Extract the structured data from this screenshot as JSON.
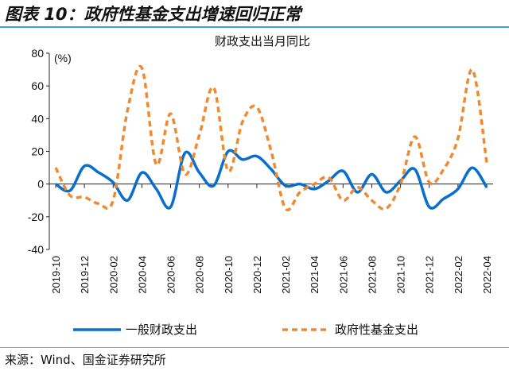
{
  "header": {
    "title": "图表 10：政府性基金支出增速回归正常"
  },
  "source": "来源：Wind、国金证券研究所",
  "chart_data": {
    "type": "line",
    "title": "财政支出当月同比",
    "ylabel": "(%)",
    "xlabel": "",
    "ylim": [
      -40,
      80
    ],
    "yticks": [
      -40,
      -20,
      0,
      20,
      40,
      60,
      80
    ],
    "x": [
      "2019-10",
      "2019-11",
      "2019-12",
      "2020-01",
      "2020-02",
      "2020-03",
      "2020-04",
      "2020-05",
      "2020-06",
      "2020-07",
      "2020-08",
      "2020-09",
      "2020-10",
      "2020-11",
      "2020-12",
      "2021-01",
      "2021-02",
      "2021-03",
      "2021-04",
      "2021-05",
      "2021-06",
      "2021-07",
      "2021-08",
      "2021-09",
      "2021-10",
      "2021-11",
      "2021-12",
      "2022-01",
      "2022-02",
      "2022-03",
      "2022-04"
    ],
    "xtick_labels": [
      "2019-10",
      "2019-12",
      "2020-02",
      "2020-04",
      "2020-06",
      "2020-08",
      "2020-10",
      "2020-12",
      "2021-02",
      "2021-04",
      "2021-06",
      "2021-08",
      "2021-10",
      "2021-12",
      "2022-02",
      "2022-04"
    ],
    "legend_position": "bottom",
    "series": [
      {
        "name": "一般财政支出",
        "color": "#0a6fcc",
        "style": "solid",
        "values": [
          0,
          -4,
          11,
          7,
          1,
          -10,
          7,
          -3,
          -14,
          19,
          7,
          -1,
          20,
          15,
          17,
          9,
          -1,
          0,
          -3,
          2,
          8,
          -5,
          6,
          -5,
          2,
          9,
          -14,
          -9,
          -3,
          10,
          -2
        ]
      },
      {
        "name": "政府性基金支出",
        "color": "#f08a32",
        "style": "dashed",
        "values": [
          10,
          -7,
          -8,
          -12,
          -10,
          45,
          71,
          12,
          43,
          6,
          30,
          59,
          8,
          38,
          47,
          20,
          -15,
          -5,
          0,
          4,
          -10,
          -2,
          -10,
          -15,
          0,
          29,
          1,
          9,
          28,
          70,
          13
        ]
      }
    ]
  }
}
